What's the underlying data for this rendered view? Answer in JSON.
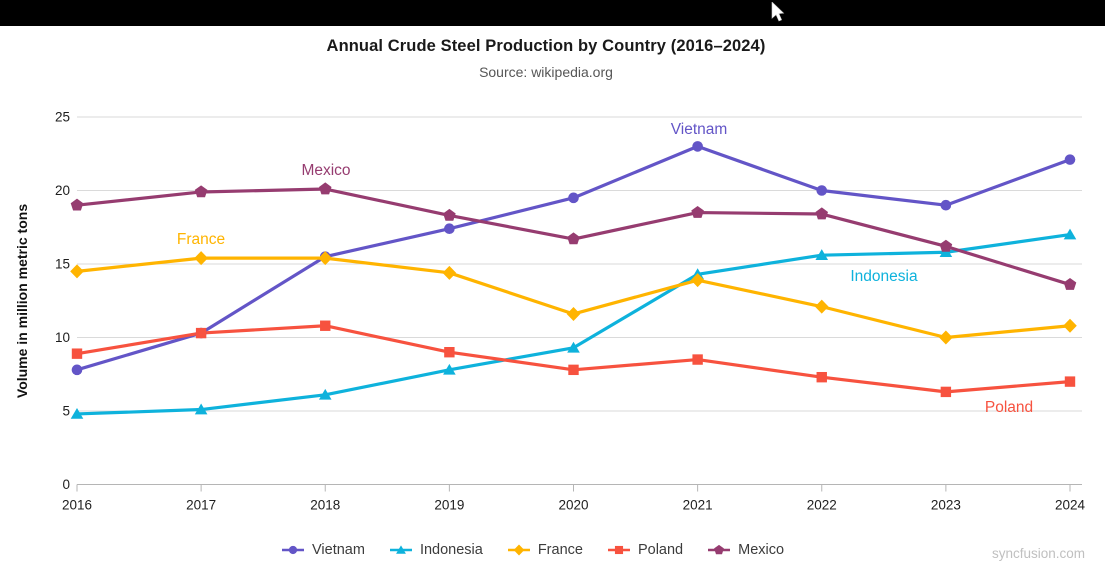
{
  "page": {
    "top_bar": {
      "cursor_icon": "arrow-cursor-icon"
    },
    "watermark": "syncfusion.com"
  },
  "chart_data": {
    "type": "line",
    "title": "Annual Crude Steel Production by Country (2016–2024)",
    "subtitle": "Source: wikipedia.org",
    "xlabel": "",
    "ylabel": "Volume in million metric tons",
    "x": [
      2016,
      2017,
      2018,
      2019,
      2020,
      2021,
      2022,
      2023,
      2024
    ],
    "ylim": [
      0,
      25
    ],
    "yticks": [
      0,
      5,
      10,
      15,
      20,
      25
    ],
    "grid": true,
    "legend_position": "bottom-center",
    "series": [
      {
        "name": "Vietnam",
        "color": "#6355C7",
        "marker": "circle",
        "values": [
          7.8,
          10.3,
          15.5,
          17.4,
          19.5,
          23.0,
          20.0,
          19.0,
          22.1
        ]
      },
      {
        "name": "Indonesia",
        "color": "#0EB2DC",
        "marker": "triangle",
        "values": [
          4.8,
          5.1,
          6.1,
          7.8,
          9.3,
          14.3,
          15.6,
          15.8,
          17.0
        ]
      },
      {
        "name": "France",
        "color": "#FFB400",
        "marker": "diamond",
        "values": [
          14.5,
          15.4,
          15.4,
          14.4,
          11.6,
          13.9,
          12.1,
          10.0,
          10.8
        ]
      },
      {
        "name": "Poland",
        "color": "#F7523F",
        "marker": "square",
        "values": [
          8.9,
          10.3,
          10.8,
          9.0,
          7.8,
          8.5,
          7.3,
          6.3,
          7.0
        ]
      },
      {
        "name": "Mexico",
        "color": "#963C70",
        "marker": "pentagon",
        "values": [
          19.0,
          19.9,
          20.1,
          18.3,
          16.7,
          18.5,
          18.4,
          16.2,
          13.6
        ]
      }
    ]
  }
}
